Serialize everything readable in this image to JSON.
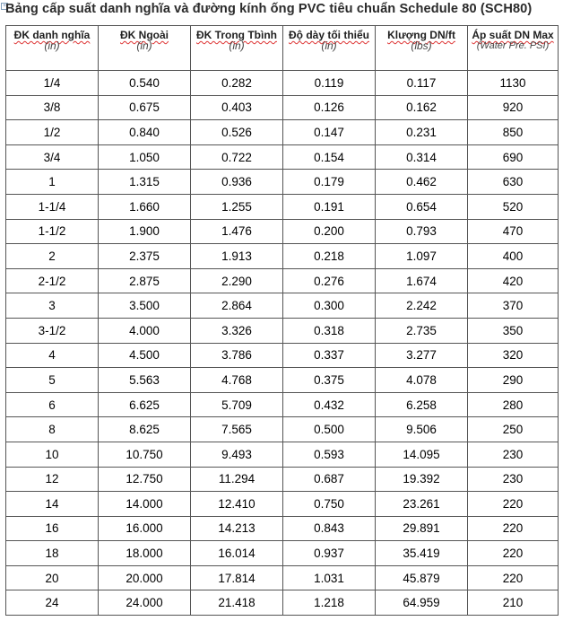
{
  "title": "Bảng cấp suất danh nghĩa và đường kính ống PVC tiêu chuẩn Schedule 80 (SCH80)",
  "headers": [
    {
      "label": "ĐK danh nghĩa",
      "unit": "(in)"
    },
    {
      "label": "ĐK Ngoài",
      "unit": "(in)"
    },
    {
      "label": "ĐK Trong Tbình",
      "unit": "(in)"
    },
    {
      "label": "Độ dày tối thiểu",
      "unit": "(in)"
    },
    {
      "label": "Klượng DN/ft",
      "unit": "(lbs)"
    },
    {
      "label": "Áp suất DN Max",
      "unit": "(Water Pre. PSI)"
    }
  ],
  "rows": [
    [
      "1/4",
      "0.540",
      "0.282",
      "0.119",
      "0.117",
      "1130"
    ],
    [
      "3/8",
      "0.675",
      "0.403",
      "0.126",
      "0.162",
      "920"
    ],
    [
      "1/2",
      "0.840",
      "0.526",
      "0.147",
      "0.231",
      "850"
    ],
    [
      "3/4",
      "1.050",
      "0.722",
      "0.154",
      "0.314",
      "690"
    ],
    [
      "1",
      "1.315",
      "0.936",
      "0.179",
      "0.462",
      "630"
    ],
    [
      "1-1/4",
      "1.660",
      "1.255",
      "0.191",
      "0.654",
      "520"
    ],
    [
      "1-1/2",
      "1.900",
      "1.476",
      "0.200",
      "0.793",
      "470"
    ],
    [
      "2",
      "2.375",
      "1.913",
      "0.218",
      "1.097",
      "400"
    ],
    [
      "2-1/2",
      "2.875",
      "2.290",
      "0.276",
      "1.674",
      "420"
    ],
    [
      "3",
      "3.500",
      "2.864",
      "0.300",
      "2.242",
      "370"
    ],
    [
      "3-1/2",
      "4.000",
      "3.326",
      "0.318",
      "2.735",
      "350"
    ],
    [
      "4",
      "4.500",
      "3.786",
      "0.337",
      "3.277",
      "320"
    ],
    [
      "5",
      "5.563",
      "4.768",
      "0.375",
      "4.078",
      "290"
    ],
    [
      "6",
      "6.625",
      "5.709",
      "0.432",
      "6.258",
      "280"
    ],
    [
      "8",
      "8.625",
      "7.565",
      "0.500",
      "9.506",
      "250"
    ],
    [
      "10",
      "10.750",
      "9.493",
      "0.593",
      "14.095",
      "230"
    ],
    [
      "12",
      "12.750",
      "11.294",
      "0.687",
      "19.392",
      "230"
    ],
    [
      "14",
      "14.000",
      "12.410",
      "0.750",
      "23.261",
      "220"
    ],
    [
      "16",
      "16.000",
      "14.213",
      "0.843",
      "29.891",
      "220"
    ],
    [
      "18",
      "18.000",
      "16.014",
      "0.937",
      "35.419",
      "220"
    ],
    [
      "20",
      "20.000",
      "17.814",
      "1.031",
      "45.879",
      "220"
    ],
    [
      "24",
      "24.000",
      "21.418",
      "1.218",
      "64.959",
      "210"
    ]
  ]
}
